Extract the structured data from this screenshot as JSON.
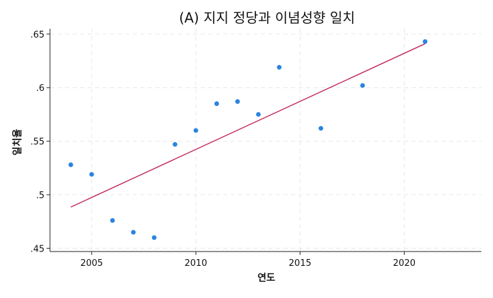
{
  "chart_data": {
    "type": "scatter",
    "title": "(A) 지지 정당과 이념성향 일치",
    "xlabel": "연도",
    "ylabel": "일치율",
    "xlim": [
      2003.0,
      2023.7
    ],
    "ylim": [
      0.447,
      0.655
    ],
    "xticks": [
      2005,
      2010,
      2015,
      2020
    ],
    "xtick_labels": [
      "2005",
      "2010",
      "2015",
      "2020"
    ],
    "yticks": [
      0.45,
      0.5,
      0.55,
      0.6,
      0.65
    ],
    "ytick_labels": [
      ".45",
      ".5",
      ".55",
      ".6",
      ".65"
    ],
    "grid": true,
    "series": [
      {
        "kind": "points",
        "color": "#2b84e0",
        "x": [
          2004,
          2005,
          2006,
          2007,
          2008,
          2009,
          2010,
          2011,
          2012,
          2013,
          2014,
          2016,
          2018,
          2021
        ],
        "y": [
          0.528,
          0.519,
          0.476,
          0.465,
          0.46,
          0.547,
          0.56,
          0.585,
          0.587,
          0.575,
          0.619,
          0.562,
          0.602,
          0.643
        ]
      },
      {
        "kind": "fit-line",
        "color": "#c0265a",
        "x": [
          2004,
          2021
        ],
        "y": [
          0.4885,
          0.641
        ]
      }
    ]
  }
}
